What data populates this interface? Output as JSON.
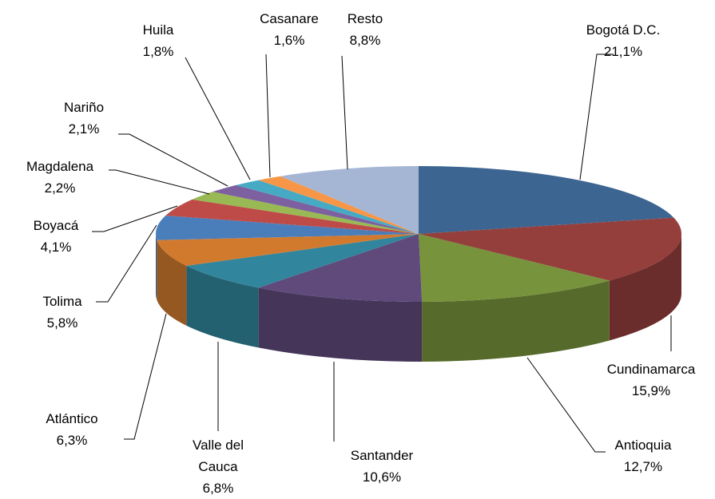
{
  "chart_data": {
    "type": "pie",
    "categories": [
      "Bogotá D.C.",
      "Cundinamarca",
      "Antioquia",
      "Santander",
      "Valle del Cauca",
      "Atlántico",
      "Tolima",
      "Boyacá",
      "Magdalena",
      "Nariño",
      "Huila",
      "Casanare",
      "Resto"
    ],
    "values": [
      21.1,
      15.9,
      12.7,
      10.6,
      6.8,
      6.3,
      5.8,
      4.1,
      2.2,
      2.1,
      1.8,
      1.6,
      8.8
    ],
    "value_labels": [
      "21,1%",
      "15,9%",
      "12,7%",
      "10,6%",
      "6,8%",
      "6,3%",
      "5,8%",
      "4,1%",
      "2,2%",
      "2,1%",
      "1,8%",
      "1,6%",
      "8,8%"
    ],
    "colors": [
      "#3d6591",
      "#943f3c",
      "#77933c",
      "#5f4a7b",
      "#31859c",
      "#d17a2e",
      "#4a7ebb",
      "#be4b48",
      "#98b954",
      "#7d60a0",
      "#46aac5",
      "#f79646",
      "#a5b6d4"
    ]
  }
}
